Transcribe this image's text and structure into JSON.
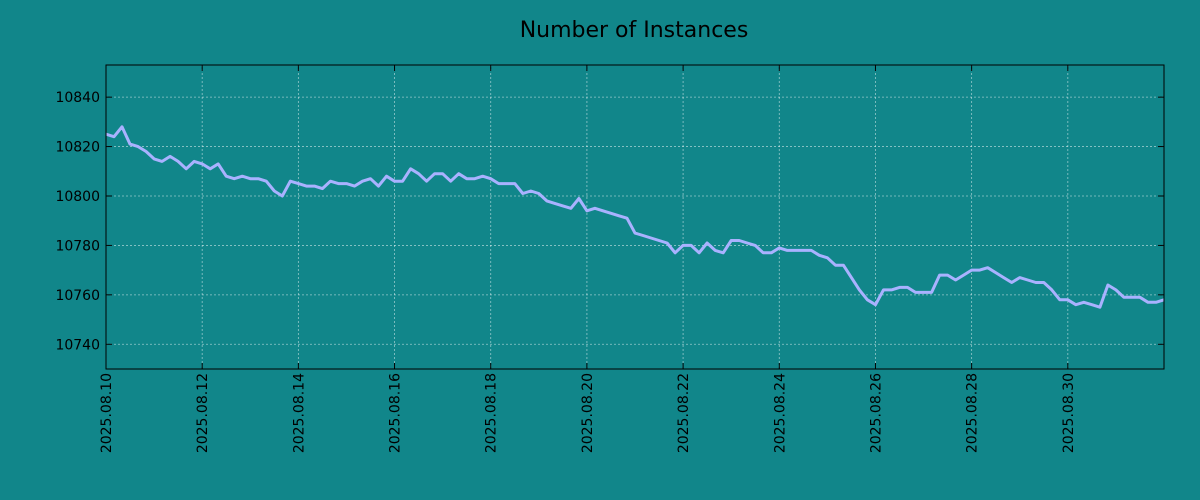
{
  "chart_data": {
    "type": "line",
    "title": "Number of Instances",
    "xlabel": "",
    "ylabel": "",
    "background": "#11868a",
    "line_color": "#a9b2ff",
    "grid": true,
    "x_range": [
      "2025.08.10",
      "2025.09.01"
    ],
    "ylim": [
      10730,
      10853
    ],
    "y_ticks": [
      10740,
      10760,
      10780,
      10800,
      10820,
      10840
    ],
    "x_ticks": [
      "2025.08.10",
      "2025.08.12",
      "2025.08.14",
      "2025.08.16",
      "2025.08.18",
      "2025.08.20",
      "2025.08.22",
      "2025.08.24",
      "2025.08.26",
      "2025.08.28",
      "2025.08.30"
    ],
    "series": [
      {
        "x_start": "2025.08.10",
        "step_hours": 4,
        "values": [
          10825,
          10824,
          10828,
          10821,
          10820,
          10818,
          10815,
          10814,
          10816,
          10814,
          10811,
          10814,
          10813,
          10811,
          10813,
          10808,
          10807,
          10808,
          10807,
          10807,
          10806,
          10802,
          10800,
          10806,
          10805,
          10804,
          10804,
          10803,
          10806,
          10805,
          10805,
          10804,
          10806,
          10807,
          10804,
          10808,
          10806,
          10806,
          10811,
          10809,
          10806,
          10809,
          10809,
          10806,
          10809,
          10807,
          10807,
          10808,
          10807,
          10805,
          10805,
          10805,
          10801,
          10802,
          10801,
          10798,
          10797,
          10796,
          10795,
          10799,
          10794,
          10795,
          10794,
          10793,
          10792,
          10791,
          10785,
          10784,
          10783,
          10782,
          10781,
          10777,
          10780,
          10780,
          10777,
          10781,
          10778,
          10777,
          10782,
          10782,
          10781,
          10780,
          10777,
          10777,
          10779,
          10778,
          10778,
          10778,
          10778,
          10776,
          10775,
          10772,
          10772,
          10767,
          10762,
          10758,
          10756,
          10762,
          10762,
          10763,
          10763,
          10761,
          10761,
          10761,
          10768,
          10768,
          10766,
          10768,
          10770,
          10770,
          10771,
          10769,
          10767,
          10765,
          10767,
          10766,
          10765,
          10765,
          10762,
          10758,
          10758,
          10756,
          10757,
          10756,
          10755,
          10764,
          10762,
          10759,
          10759,
          10759,
          10757,
          10757,
          10758
        ]
      }
    ]
  }
}
